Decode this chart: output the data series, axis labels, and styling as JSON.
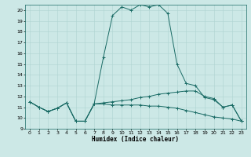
{
  "xlabel": "Humidex (Indice chaleur)",
  "xlim": [
    -0.5,
    23.5
  ],
  "ylim": [
    9,
    20.5
  ],
  "yticks": [
    9,
    10,
    11,
    12,
    13,
    14,
    15,
    16,
    17,
    18,
    19,
    20
  ],
  "xticks": [
    0,
    1,
    2,
    3,
    4,
    5,
    6,
    7,
    8,
    9,
    10,
    11,
    12,
    13,
    14,
    15,
    16,
    17,
    18,
    19,
    20,
    21,
    22,
    23
  ],
  "bg_color": "#cce8e6",
  "grid_color": "#aed4d1",
  "line_color": "#1a6b65",
  "curves": [
    {
      "x": [
        0,
        1,
        2,
        3,
        4,
        5,
        6,
        7,
        8,
        9,
        10,
        11,
        12,
        13,
        14,
        15,
        16,
        17,
        18,
        19,
        20,
        21,
        22,
        23
      ],
      "y": [
        11.5,
        11.0,
        10.6,
        10.9,
        11.4,
        9.7,
        9.7,
        11.3,
        15.6,
        19.5,
        20.3,
        20.0,
        20.5,
        20.3,
        20.5,
        19.7,
        15.0,
        13.2,
        13.0,
        11.9,
        11.7,
        11.0,
        11.2,
        9.7
      ]
    },
    {
      "x": [
        0,
        1,
        2,
        3,
        4,
        5,
        6,
        7,
        8,
        9,
        10,
        11,
        12,
        13,
        14,
        15,
        16,
        17,
        18,
        19,
        20,
        21,
        22,
        23
      ],
      "y": [
        11.5,
        11.0,
        10.6,
        10.9,
        11.4,
        9.7,
        9.7,
        11.3,
        11.4,
        11.5,
        11.6,
        11.7,
        11.9,
        12.0,
        12.2,
        12.3,
        12.4,
        12.5,
        12.5,
        12.0,
        11.8,
        11.0,
        11.2,
        9.7
      ]
    },
    {
      "x": [
        0,
        1,
        2,
        3,
        4,
        5,
        6,
        7,
        8,
        9,
        10,
        11,
        12,
        13,
        14,
        15,
        16,
        17,
        18,
        19,
        20,
        21,
        22,
        23
      ],
      "y": [
        11.5,
        11.0,
        10.6,
        10.9,
        11.4,
        9.7,
        9.7,
        11.3,
        11.3,
        11.2,
        11.2,
        11.2,
        11.2,
        11.1,
        11.1,
        11.0,
        10.9,
        10.7,
        10.5,
        10.3,
        10.1,
        10.0,
        9.9,
        9.7
      ]
    }
  ]
}
